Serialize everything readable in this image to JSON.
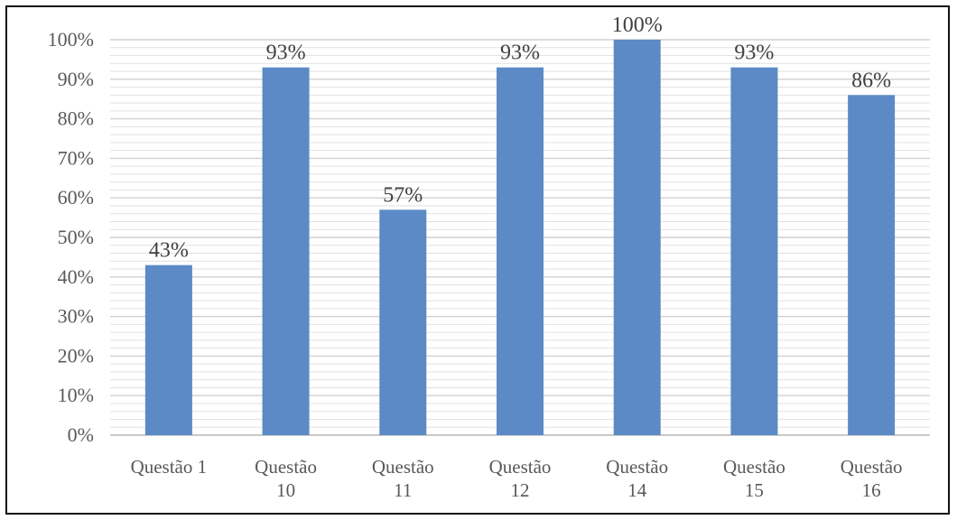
{
  "chart_data": {
    "type": "bar",
    "categories": [
      [
        "Questão 1"
      ],
      [
        "Questão",
        "10"
      ],
      [
        "Questão",
        "11"
      ],
      [
        "Questão",
        "12"
      ],
      [
        "Questão",
        "14"
      ],
      [
        "Questão",
        "15"
      ],
      [
        "Questão",
        "16"
      ]
    ],
    "values": [
      43,
      93,
      57,
      93,
      100,
      93,
      86
    ],
    "value_labels": [
      "43%",
      "93%",
      "57%",
      "93%",
      "100%",
      "93%",
      "86%"
    ],
    "y_ticks": [
      "0%",
      "10%",
      "20%",
      "30%",
      "40%",
      "50%",
      "60%",
      "70%",
      "80%",
      "90%",
      "100%"
    ],
    "ylim": [
      0,
      100
    ],
    "grid": true,
    "bar_color": "#5B8AC6",
    "title": "",
    "xlabel": "",
    "ylabel": ""
  }
}
